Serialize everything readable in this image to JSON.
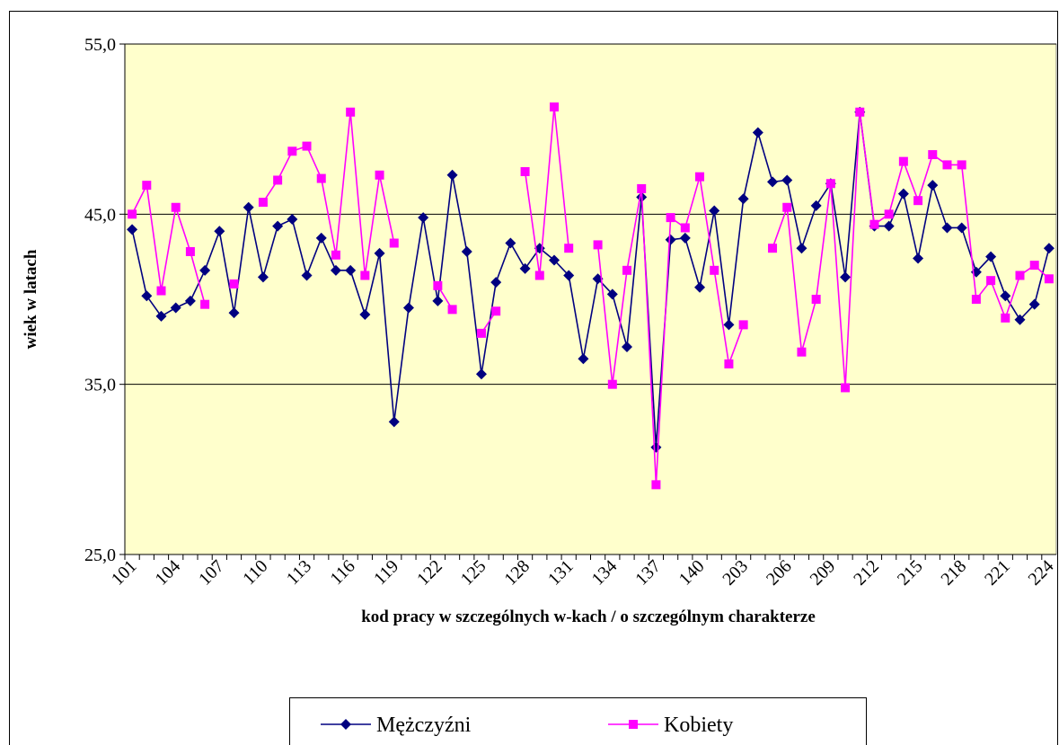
{
  "chart_data": {
    "type": "line",
    "xlabel": "kod pracy w szczególnych w-kach / o szczególnym charakterze",
    "ylabel": "wiek w latach",
    "categories": [
      "101",
      null,
      null,
      "104",
      null,
      null,
      "107",
      null,
      null,
      "110",
      null,
      null,
      "113",
      null,
      null,
      "116",
      null,
      null,
      "119",
      null,
      null,
      "122",
      null,
      null,
      "125",
      null,
      null,
      "128",
      null,
      null,
      "131",
      null,
      null,
      "134",
      null,
      null,
      "137",
      null,
      null,
      "140",
      null,
      null,
      "203",
      null,
      null,
      "206",
      null,
      null,
      "209",
      null,
      null,
      "212",
      null,
      null,
      "215",
      null,
      null,
      "218",
      null,
      null,
      "221",
      null,
      null,
      "224"
    ],
    "series": [
      {
        "name": "Mężczyźni",
        "color": "#000080",
        "marker": "diamond",
        "values": [
          44.1,
          40.2,
          39.0,
          39.5,
          39.9,
          41.7,
          44.0,
          39.2,
          45.4,
          41.3,
          44.3,
          44.7,
          41.4,
          43.6,
          41.7,
          41.7,
          39.1,
          42.7,
          32.8,
          39.5,
          44.8,
          39.9,
          47.3,
          42.8,
          35.6,
          41.0,
          43.3,
          41.8,
          43.0,
          42.3,
          41.4,
          36.5,
          41.2,
          40.3,
          37.2,
          46.0,
          31.3,
          43.5,
          43.6,
          40.7,
          45.2,
          38.5,
          45.9,
          49.8,
          46.9,
          47.0,
          43.0,
          45.5,
          46.8,
          41.3,
          51.0,
          44.3,
          44.3,
          46.2,
          42.4,
          46.7,
          44.2,
          44.2,
          41.6,
          42.5,
          40.2,
          38.8,
          39.7,
          43.0
        ]
      },
      {
        "name": "Kobiety",
        "color": "#ff00ff",
        "marker": "square",
        "values": [
          45.0,
          46.7,
          40.5,
          45.4,
          42.8,
          39.7,
          null,
          40.9,
          null,
          45.7,
          47.0,
          48.7,
          49.0,
          47.1,
          42.6,
          51.0,
          41.4,
          47.3,
          43.3,
          null,
          null,
          40.8,
          39.4,
          null,
          38.0,
          39.3,
          null,
          47.5,
          41.4,
          51.3,
          43.0,
          null,
          43.2,
          35.0,
          41.7,
          46.5,
          29.1,
          44.8,
          44.2,
          47.2,
          41.7,
          36.2,
          38.5,
          null,
          43.0,
          45.4,
          36.9,
          40.0,
          46.8,
          34.8,
          51.0,
          44.4,
          45.0,
          48.1,
          45.8,
          48.5,
          47.9,
          47.9,
          40.0,
          41.1,
          38.9,
          41.4,
          42.0,
          41.2
        ]
      }
    ],
    "ylim": [
      25,
      55
    ],
    "yticks": [
      {
        "value": 25,
        "label": "25,0"
      },
      {
        "value": 35,
        "label": "35,0"
      },
      {
        "value": 45,
        "label": "45,0"
      },
      {
        "value": 55,
        "label": "55,0"
      }
    ],
    "grid": true,
    "legend": "bottom",
    "plot_background": "#ffffcc"
  }
}
